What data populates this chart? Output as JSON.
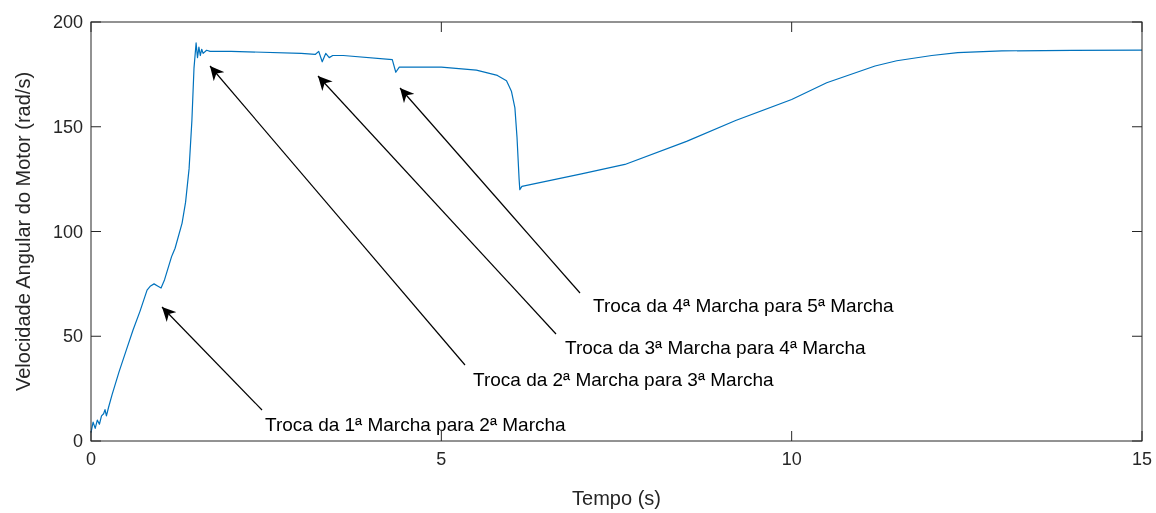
{
  "chart_data": {
    "type": "line",
    "xlabel": "Tempo (s)",
    "ylabel": "Velocidade Angular  do Motor (rad/s)",
    "xlim": [
      0,
      15
    ],
    "ylim": [
      0,
      200
    ],
    "xticks": [
      0,
      5,
      10,
      15
    ],
    "yticks": [
      0,
      50,
      100,
      150,
      200
    ],
    "grid": false,
    "series": [
      {
        "color": "#0072bd",
        "x": [
          0,
          0.03,
          0.06,
          0.09,
          0.12,
          0.15,
          0.18,
          0.2,
          0.22,
          0.25,
          0.3,
          0.4,
          0.5,
          0.6,
          0.7,
          0.8,
          0.85,
          0.9,
          0.95,
          1.0,
          1.05,
          1.15,
          1.2,
          1.3,
          1.35,
          1.4,
          1.44,
          1.47,
          1.5,
          1.52,
          1.54,
          1.56,
          1.58,
          1.6,
          1.65,
          1.7,
          2.0,
          3.0,
          3.2,
          3.25,
          3.3,
          3.35,
          3.4,
          3.45,
          3.6,
          4.3,
          4.35,
          4.4,
          4.6,
          5.0,
          5.5,
          5.8,
          5.93,
          6.0,
          6.05,
          6.08,
          6.11,
          6.12,
          6.15,
          7.0,
          7.62,
          8.5,
          9.2,
          10.0,
          10.5,
          11.19,
          11.5,
          12.0,
          12.37,
          13.0,
          14.0,
          15.0
        ],
        "values": [
          4,
          9,
          6,
          10,
          8,
          12,
          13,
          15,
          12,
          16,
          22,
          33,
          43,
          53,
          62,
          72,
          74,
          75,
          74,
          73,
          77,
          88,
          92,
          104,
          114,
          130,
          153,
          178,
          190,
          183,
          188,
          184,
          187,
          185,
          186.5,
          186,
          186,
          185,
          184.5,
          186,
          181,
          185,
          183,
          184,
          184,
          182,
          176,
          178.5,
          178.5,
          178.5,
          177,
          174.5,
          172,
          167,
          159,
          145,
          125,
          120,
          121.5,
          127.5,
          132,
          143,
          153,
          163,
          171,
          179,
          181.5,
          184,
          185.4,
          186.2,
          186.5,
          186.6
        ]
      }
    ],
    "annotations": [
      "Troca da 1ª Marcha para 2ª Marcha",
      "Troca da 2ª Marcha para 3ª Marcha",
      "Troca da 3ª Marcha para 4ª Marcha",
      "Troca da 4ª Marcha para 5ª Marcha"
    ]
  }
}
